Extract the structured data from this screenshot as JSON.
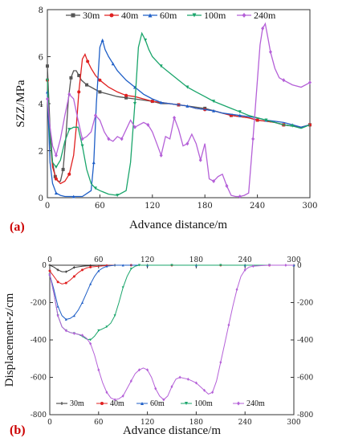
{
  "chart_data": [
    {
      "type": "line",
      "panel_label": "(a)",
      "xlabel": "Advance distance/m",
      "ylabel": "SZZ/MPa",
      "xlim": [
        0,
        300
      ],
      "ylim": [
        0,
        8
      ],
      "x_ticks": [
        "0",
        "60",
        "120",
        "180",
        "240",
        "300"
      ],
      "y_ticks": [
        "0",
        "2",
        "4",
        "6",
        "8"
      ],
      "legend_position": "top",
      "series": [
        {
          "name": "30m",
          "color": "#555555",
          "marker": "square",
          "x": [
            0,
            3,
            6,
            9,
            12,
            15,
            18,
            21,
            24,
            27,
            30,
            33,
            36,
            39,
            42,
            45,
            50,
            55,
            60,
            70,
            80,
            90,
            100,
            110,
            120,
            130,
            140,
            150,
            160,
            170,
            180,
            190,
            200,
            210,
            220,
            230,
            240,
            250,
            260,
            270,
            280,
            290,
            300
          ],
          "y": [
            5.6,
            3.0,
            1.5,
            0.9,
            0.7,
            0.7,
            1.2,
            2.5,
            4.2,
            5.1,
            5.4,
            5.4,
            5.2,
            5.0,
            4.9,
            4.8,
            4.7,
            4.6,
            4.5,
            4.4,
            4.3,
            4.25,
            4.2,
            4.15,
            4.1,
            4.0,
            4.0,
            3.95,
            3.9,
            3.85,
            3.8,
            3.7,
            3.6,
            3.5,
            3.45,
            3.4,
            3.3,
            3.25,
            3.2,
            3.1,
            3.05,
            3.0,
            3.1
          ]
        },
        {
          "name": "40m",
          "color": "#e02020",
          "marker": "circle",
          "x": [
            0,
            3,
            6,
            10,
            15,
            20,
            25,
            30,
            33,
            36,
            40,
            43,
            46,
            50,
            55,
            60,
            70,
            80,
            90,
            100,
            110,
            120,
            130,
            140,
            150,
            160,
            170,
            180,
            190,
            200,
            210,
            220,
            230,
            240,
            250,
            260,
            270,
            280,
            290,
            300
          ],
          "y": [
            5.0,
            2.5,
            1.3,
            0.8,
            0.6,
            0.7,
            1.0,
            1.8,
            3.0,
            4.5,
            5.9,
            6.1,
            5.8,
            5.5,
            5.2,
            5.0,
            4.7,
            4.5,
            4.35,
            4.3,
            4.2,
            4.1,
            4.05,
            4.0,
            3.95,
            3.9,
            3.8,
            3.75,
            3.7,
            3.6,
            3.5,
            3.45,
            3.4,
            3.3,
            3.25,
            3.2,
            3.1,
            3.05,
            3.0,
            3.1
          ]
        },
        {
          "name": "60m",
          "color": "#1f5fc7",
          "marker": "triangle-up",
          "x": [
            0,
            3,
            6,
            10,
            15,
            20,
            30,
            40,
            50,
            53,
            56,
            60,
            63,
            66,
            70,
            75,
            80,
            90,
            100,
            110,
            120,
            130,
            140,
            150,
            160,
            170,
            180,
            190,
            200,
            210,
            220,
            230,
            240,
            250,
            260,
            270,
            280,
            290,
            300
          ],
          "y": [
            4.5,
            1.5,
            0.6,
            0.2,
            0.1,
            0.05,
            0.05,
            0.05,
            0.3,
            1.5,
            4.0,
            6.4,
            6.7,
            6.3,
            6.0,
            5.7,
            5.4,
            5.0,
            4.7,
            4.4,
            4.2,
            4.05,
            4.0,
            3.95,
            3.9,
            3.8,
            3.75,
            3.7,
            3.6,
            3.55,
            3.5,
            3.45,
            3.4,
            3.3,
            3.25,
            3.2,
            3.1,
            3.0,
            3.1
          ]
        },
        {
          "name": "100m",
          "color": "#1aa56b",
          "marker": "triangle-down",
          "x": [
            0,
            3,
            6,
            10,
            15,
            20,
            25,
            30,
            35,
            40,
            45,
            50,
            55,
            60,
            70,
            80,
            90,
            95,
            100,
            104,
            108,
            112,
            116,
            120,
            130,
            140,
            150,
            160,
            170,
            180,
            190,
            200,
            210,
            220,
            230,
            240,
            250,
            260,
            270,
            280,
            290,
            300
          ],
          "y": [
            5.0,
            2.5,
            1.5,
            1.3,
            1.6,
            2.4,
            2.9,
            3.0,
            3.0,
            2.2,
            1.2,
            0.6,
            0.4,
            0.3,
            0.15,
            0.1,
            0.3,
            1.5,
            4.0,
            6.4,
            7.0,
            6.7,
            6.3,
            6.0,
            5.6,
            5.3,
            5.0,
            4.7,
            4.5,
            4.3,
            4.1,
            3.95,
            3.8,
            3.65,
            3.5,
            3.4,
            3.3,
            3.2,
            3.1,
            3.05,
            2.95,
            3.1
          ]
        },
        {
          "name": "240m",
          "color": "#b561d8",
          "marker": "diamond",
          "x": [
            0,
            3,
            6,
            10,
            15,
            20,
            25,
            30,
            35,
            40,
            45,
            50,
            55,
            60,
            65,
            70,
            75,
            80,
            85,
            90,
            95,
            100,
            105,
            110,
            115,
            120,
            125,
            130,
            135,
            140,
            145,
            150,
            155,
            160,
            165,
            170,
            175,
            180,
            185,
            190,
            195,
            200,
            205,
            210,
            215,
            220,
            225,
            230,
            235,
            240,
            243,
            246,
            249,
            252,
            255,
            260,
            265,
            270,
            280,
            290,
            300
          ],
          "y": [
            4.2,
            3.0,
            2.2,
            1.8,
            2.5,
            3.5,
            4.4,
            4.2,
            3.3,
            2.5,
            2.6,
            2.8,
            3.5,
            3.3,
            2.8,
            2.5,
            2.4,
            2.6,
            2.5,
            2.9,
            3.3,
            3.0,
            3.1,
            3.2,
            3.1,
            2.8,
            2.3,
            1.8,
            2.6,
            2.5,
            3.4,
            2.9,
            2.2,
            2.3,
            2.7,
            2.3,
            1.6,
            2.3,
            0.8,
            0.7,
            0.9,
            1.0,
            0.5,
            0.1,
            0.05,
            0.05,
            0.1,
            0.2,
            2.5,
            5.0,
            6.5,
            7.2,
            7.4,
            6.8,
            6.2,
            5.5,
            5.1,
            5.0,
            4.8,
            4.7,
            4.9
          ]
        }
      ]
    },
    {
      "type": "line",
      "panel_label": "(b)",
      "xlabel": "Advance distance/m",
      "ylabel": "Displacement-z/cm",
      "xlim": [
        0,
        300
      ],
      "ylim": [
        -800,
        0
      ],
      "x_ticks": [
        "0",
        "60",
        "120",
        "180",
        "240",
        "300"
      ],
      "y_ticks_left": [
        "0",
        "-200",
        "-400",
        "-600",
        "-800"
      ],
      "y_ticks_right": [
        "0",
        "-200",
        "-400",
        "-600",
        "-800"
      ],
      "legend_position": "bottom",
      "series": [
        {
          "name": "30m",
          "color": "#333333",
          "marker": "cross",
          "x": [
            0,
            5,
            10,
            15,
            20,
            25,
            30,
            40,
            50,
            60,
            80,
            100,
            120,
            150,
            180,
            210,
            240,
            270,
            300
          ],
          "y": [
            0,
            -10,
            -25,
            -35,
            -35,
            -25,
            -12,
            -5,
            -2,
            0,
            0,
            0,
            0,
            0,
            0,
            0,
            0,
            0,
            0
          ]
        },
        {
          "name": "40m",
          "color": "#e02020",
          "marker": "circle",
          "x": [
            0,
            5,
            10,
            15,
            20,
            25,
            30,
            35,
            40,
            45,
            50,
            60,
            70,
            80,
            100,
            120,
            150,
            180,
            210,
            240,
            270,
            300
          ],
          "y": [
            -30,
            -60,
            -90,
            -100,
            -95,
            -80,
            -60,
            -40,
            -25,
            -15,
            -10,
            -5,
            -2,
            0,
            0,
            0,
            0,
            0,
            0,
            0,
            0,
            0
          ]
        },
        {
          "name": "60m",
          "color": "#1f5fc7",
          "marker": "triangle-up",
          "x": [
            0,
            5,
            10,
            15,
            20,
            25,
            30,
            35,
            40,
            45,
            50,
            55,
            60,
            65,
            70,
            80,
            90,
            100,
            120,
            150,
            180,
            210,
            240,
            270,
            300
          ],
          "y": [
            -50,
            -130,
            -220,
            -270,
            -290,
            -285,
            -270,
            -240,
            -200,
            -150,
            -100,
            -60,
            -30,
            -15,
            -5,
            0,
            0,
            0,
            0,
            0,
            0,
            0,
            0,
            0,
            0
          ]
        },
        {
          "name": "100m",
          "color": "#1aa56b",
          "marker": "triangle-down",
          "x": [
            0,
            5,
            10,
            15,
            20,
            25,
            30,
            35,
            40,
            45,
            50,
            55,
            60,
            65,
            70,
            75,
            80,
            85,
            90,
            95,
            100,
            105,
            110,
            120,
            150,
            180,
            210,
            240,
            270,
            300
          ],
          "y": [
            -50,
            -150,
            -270,
            -330,
            -350,
            -360,
            -365,
            -370,
            -380,
            -395,
            -400,
            -380,
            -350,
            -340,
            -330,
            -310,
            -270,
            -200,
            -120,
            -60,
            -20,
            -5,
            0,
            0,
            0,
            0,
            0,
            0,
            0,
            0
          ]
        },
        {
          "name": "240m",
          "color": "#b561d8",
          "marker": "diamond",
          "x": [
            0,
            5,
            10,
            15,
            20,
            25,
            30,
            35,
            40,
            45,
            50,
            55,
            60,
            65,
            70,
            75,
            80,
            85,
            90,
            95,
            100,
            105,
            110,
            115,
            120,
            125,
            130,
            135,
            140,
            145,
            150,
            155,
            160,
            165,
            170,
            175,
            180,
            185,
            190,
            195,
            200,
            205,
            210,
            215,
            220,
            225,
            230,
            235,
            240,
            245,
            250,
            260,
            270,
            280,
            290,
            300
          ],
          "y": [
            -50,
            -150,
            -270,
            -330,
            -350,
            -360,
            -365,
            -370,
            -375,
            -390,
            -420,
            -480,
            -560,
            -630,
            -680,
            -710,
            -720,
            -715,
            -700,
            -660,
            -620,
            -580,
            -560,
            -550,
            -560,
            -600,
            -660,
            -700,
            -720,
            -700,
            -650,
            -610,
            -600,
            -605,
            -610,
            -620,
            -630,
            -650,
            -670,
            -690,
            -680,
            -620,
            -520,
            -420,
            -320,
            -220,
            -130,
            -60,
            -25,
            -10,
            -5,
            -2,
            0,
            0,
            0,
            0
          ]
        }
      ]
    }
  ]
}
